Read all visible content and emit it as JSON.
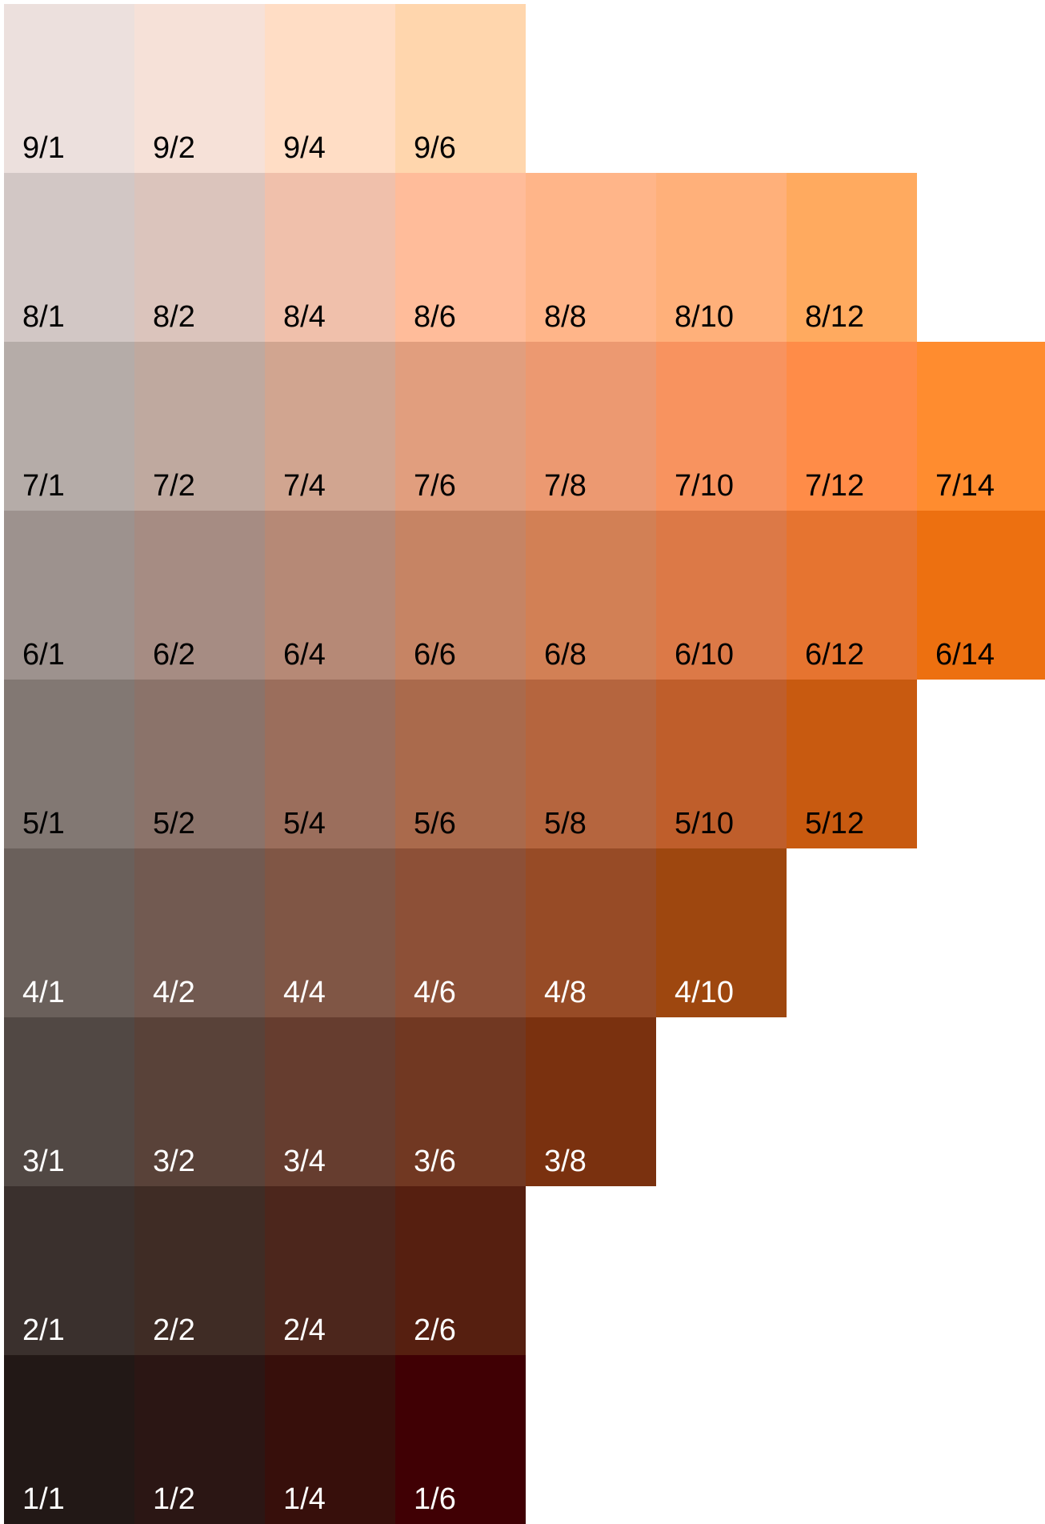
{
  "chart_data": {
    "type": "heatmap",
    "rows": [
      {
        "value": 9,
        "cells": [
          {
            "label": "9/1",
            "color": "#ece0dd",
            "text_color": "#000000"
          },
          {
            "label": "9/2",
            "color": "#f6e1d8",
            "text_color": "#000000"
          },
          {
            "label": "9/4",
            "color": "#ffddc5",
            "text_color": "#000000"
          },
          {
            "label": "9/6",
            "color": "#ffd6ad",
            "text_color": "#000000"
          }
        ]
      },
      {
        "value": 8,
        "cells": [
          {
            "label": "8/1",
            "color": "#d2c7c5",
            "text_color": "#000000"
          },
          {
            "label": "8/2",
            "color": "#dbc4bc",
            "text_color": "#000000"
          },
          {
            "label": "8/4",
            "color": "#f0c0ab",
            "text_color": "#000000"
          },
          {
            "label": "8/6",
            "color": "#ffbc9a",
            "text_color": "#000000"
          },
          {
            "label": "8/8",
            "color": "#ffb589",
            "text_color": "#000000"
          },
          {
            "label": "8/10",
            "color": "#ffb07a",
            "text_color": "#000000"
          },
          {
            "label": "8/12",
            "color": "#ffaa5f",
            "text_color": "#000000"
          }
        ]
      },
      {
        "value": 7,
        "cells": [
          {
            "label": "7/1",
            "color": "#b5aca8",
            "text_color": "#000000"
          },
          {
            "label": "7/2",
            "color": "#bfa99f",
            "text_color": "#000000"
          },
          {
            "label": "7/4",
            "color": "#d1a590",
            "text_color": "#000000"
          },
          {
            "label": "7/6",
            "color": "#e19e7e",
            "text_color": "#000000"
          },
          {
            "label": "7/8",
            "color": "#ec9971",
            "text_color": "#000000"
          },
          {
            "label": "7/10",
            "color": "#f8935f",
            "text_color": "#000000"
          },
          {
            "label": "7/12",
            "color": "#ff8c48",
            "text_color": "#000000"
          },
          {
            "label": "7/14",
            "color": "#ff8c2f",
            "text_color": "#000000"
          }
        ]
      },
      {
        "value": 6,
        "cells": [
          {
            "label": "6/1",
            "color": "#9d928e",
            "text_color": "#000000"
          },
          {
            "label": "6/2",
            "color": "#a68c83",
            "text_color": "#000000"
          },
          {
            "label": "6/4",
            "color": "#b68976",
            "text_color": "#000000"
          },
          {
            "label": "6/6",
            "color": "#c68464",
            "text_color": "#000000"
          },
          {
            "label": "6/8",
            "color": "#d28055",
            "text_color": "#000000"
          },
          {
            "label": "6/10",
            "color": "#dc7947",
            "text_color": "#000000"
          },
          {
            "label": "6/12",
            "color": "#e67430",
            "text_color": "#000000"
          },
          {
            "label": "6/14",
            "color": "#ed7010",
            "text_color": "#000000"
          }
        ]
      },
      {
        "value": 5,
        "cells": [
          {
            "label": "5/1",
            "color": "#827873",
            "text_color": "#000000"
          },
          {
            "label": "5/2",
            "color": "#8b736a",
            "text_color": "#000000"
          },
          {
            "label": "5/4",
            "color": "#9b6e5c",
            "text_color": "#000000"
          },
          {
            "label": "5/6",
            "color": "#aa6a4c",
            "text_color": "#000000"
          },
          {
            "label": "5/8",
            "color": "#b5653e",
            "text_color": "#000000"
          },
          {
            "label": "5/10",
            "color": "#bf5e2b",
            "text_color": "#000000"
          },
          {
            "label": "5/12",
            "color": "#c85a10",
            "text_color": "#000000"
          }
        ]
      },
      {
        "value": 4,
        "cells": [
          {
            "label": "4/1",
            "color": "#6a605b",
            "text_color": "#ffffff"
          },
          {
            "label": "4/2",
            "color": "#725a51",
            "text_color": "#ffffff"
          },
          {
            "label": "4/4",
            "color": "#805645",
            "text_color": "#ffffff"
          },
          {
            "label": "4/6",
            "color": "#8d5037",
            "text_color": "#ffffff"
          },
          {
            "label": "4/8",
            "color": "#974b26",
            "text_color": "#ffffff"
          },
          {
            "label": "4/10",
            "color": "#9e470f",
            "text_color": "#ffffff"
          }
        ]
      },
      {
        "value": 3,
        "cells": [
          {
            "label": "3/1",
            "color": "#514844",
            "text_color": "#ffffff"
          },
          {
            "label": "3/2",
            "color": "#594239",
            "text_color": "#ffffff"
          },
          {
            "label": "3/4",
            "color": "#663d2f",
            "text_color": "#ffffff"
          },
          {
            "label": "3/6",
            "color": "#713822",
            "text_color": "#ffffff"
          },
          {
            "label": "3/8",
            "color": "#7a310f",
            "text_color": "#ffffff"
          }
        ]
      },
      {
        "value": 2,
        "cells": [
          {
            "label": "2/1",
            "color": "#3a302d",
            "text_color": "#ffffff"
          },
          {
            "label": "2/2",
            "color": "#3f2c25",
            "text_color": "#ffffff"
          },
          {
            "label": "2/4",
            "color": "#4c261c",
            "text_color": "#ffffff"
          },
          {
            "label": "2/6",
            "color": "#561f10",
            "text_color": "#ffffff"
          }
        ]
      },
      {
        "value": 1,
        "cells": [
          {
            "label": "1/1",
            "color": "#221816",
            "text_color": "#ffffff"
          },
          {
            "label": "1/2",
            "color": "#2b1614",
            "text_color": "#ffffff"
          },
          {
            "label": "1/4",
            "color": "#370f0b",
            "text_color": "#ffffff"
          },
          {
            "label": "1/6",
            "color": "#400004",
            "text_color": "#ffffff"
          }
        ]
      }
    ]
  }
}
